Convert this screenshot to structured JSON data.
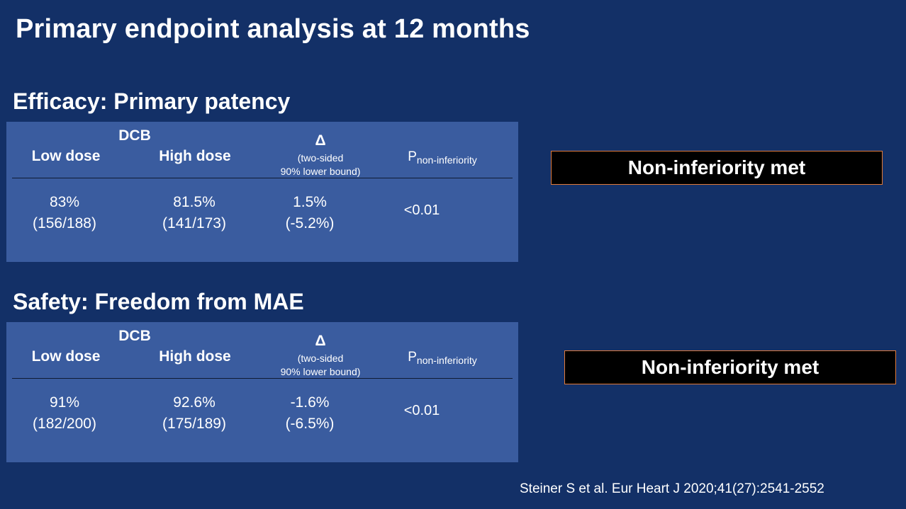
{
  "slide": {
    "title": "Primary endpoint analysis at 12 months",
    "citation": "Steiner S et al. Eur Heart J 2020;41(27):2541-2552"
  },
  "table_headers": {
    "group": "DCB",
    "low_dose": "Low dose",
    "high_dose": "High dose",
    "delta": "Δ",
    "delta_note_line1": "(two-sided",
    "delta_note_line2": "90% lower bound)",
    "p_main": "P",
    "p_sub": "non-inferiority"
  },
  "sections": [
    {
      "heading": "Efficacy: Primary patency",
      "low_pct": "83%",
      "low_n": "(156/188)",
      "high_pct": "81.5%",
      "high_n": "(141/173)",
      "delta_value": "1.5%",
      "delta_bound": "(-5.2%)",
      "p_value": "<0.01",
      "verdict": "Non-inferiority met"
    },
    {
      "heading": "Safety: Freedom from MAE",
      "low_pct": "91%",
      "low_n": "(182/200)",
      "high_pct": "92.6%",
      "high_n": "(175/189)",
      "delta_value": "-1.6%",
      "delta_bound": "(-6.5%)",
      "p_value": "<0.01",
      "verdict": "Non-inferiority met"
    }
  ],
  "colors": {
    "background": "#133067",
    "panel": "#3a5c9f",
    "verdict_box": "#000000",
    "verdict_border": "#e07a3a"
  }
}
